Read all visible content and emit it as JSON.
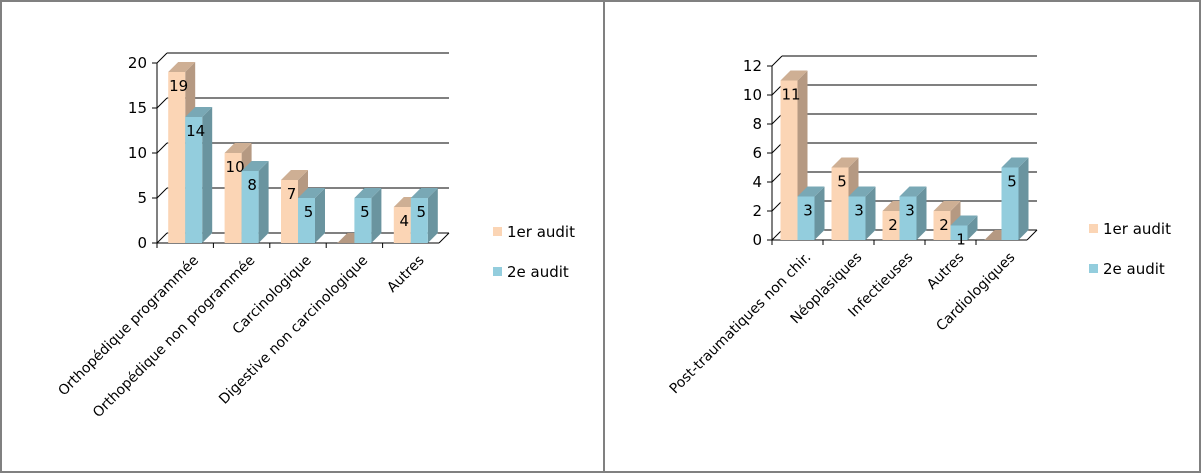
{
  "chart_data": [
    {
      "type": "bar",
      "categories": [
        "Orthopédique programmée",
        "Orthopédique non programmée",
        "Carcinologique",
        "Digestive non carcinologique",
        "Autres"
      ],
      "series": [
        {
          "name": "1er audit",
          "values": [
            19,
            10,
            7,
            0,
            4
          ]
        },
        {
          "name": "2e audit",
          "values": [
            14,
            8,
            5,
            5,
            5
          ]
        }
      ],
      "data_labels": [
        [
          "19",
          "10",
          "7",
          "",
          "4"
        ],
        [
          "14",
          "8",
          "5",
          "5",
          "5"
        ]
      ],
      "yticks": [
        "0",
        "5",
        "10",
        "15",
        "20"
      ],
      "ylim": [
        0,
        20
      ],
      "grid": true,
      "legend": "right",
      "colors": [
        "#fbd5b5",
        "#93cddd"
      ]
    },
    {
      "type": "bar",
      "categories": [
        "Post-traumatiques non chir.",
        "Néoplasiques",
        "Infectieuses",
        "Autres",
        "Cardiologiques"
      ],
      "series": [
        {
          "name": "1er audit",
          "values": [
            11,
            5,
            2,
            2,
            0
          ]
        },
        {
          "name": "2e audit",
          "values": [
            3,
            3,
            3,
            1,
            5
          ]
        }
      ],
      "data_labels": [
        [
          "11",
          "5",
          "2",
          "2",
          ""
        ],
        [
          "3",
          "3",
          "3",
          "1",
          "5"
        ]
      ],
      "yticks": [
        "0",
        "2",
        "4",
        "6",
        "8",
        "10",
        "12"
      ],
      "ylim": [
        0,
        12
      ],
      "grid": true,
      "legend": "right",
      "colors": [
        "#fbd5b5",
        "#93cddd"
      ]
    }
  ]
}
